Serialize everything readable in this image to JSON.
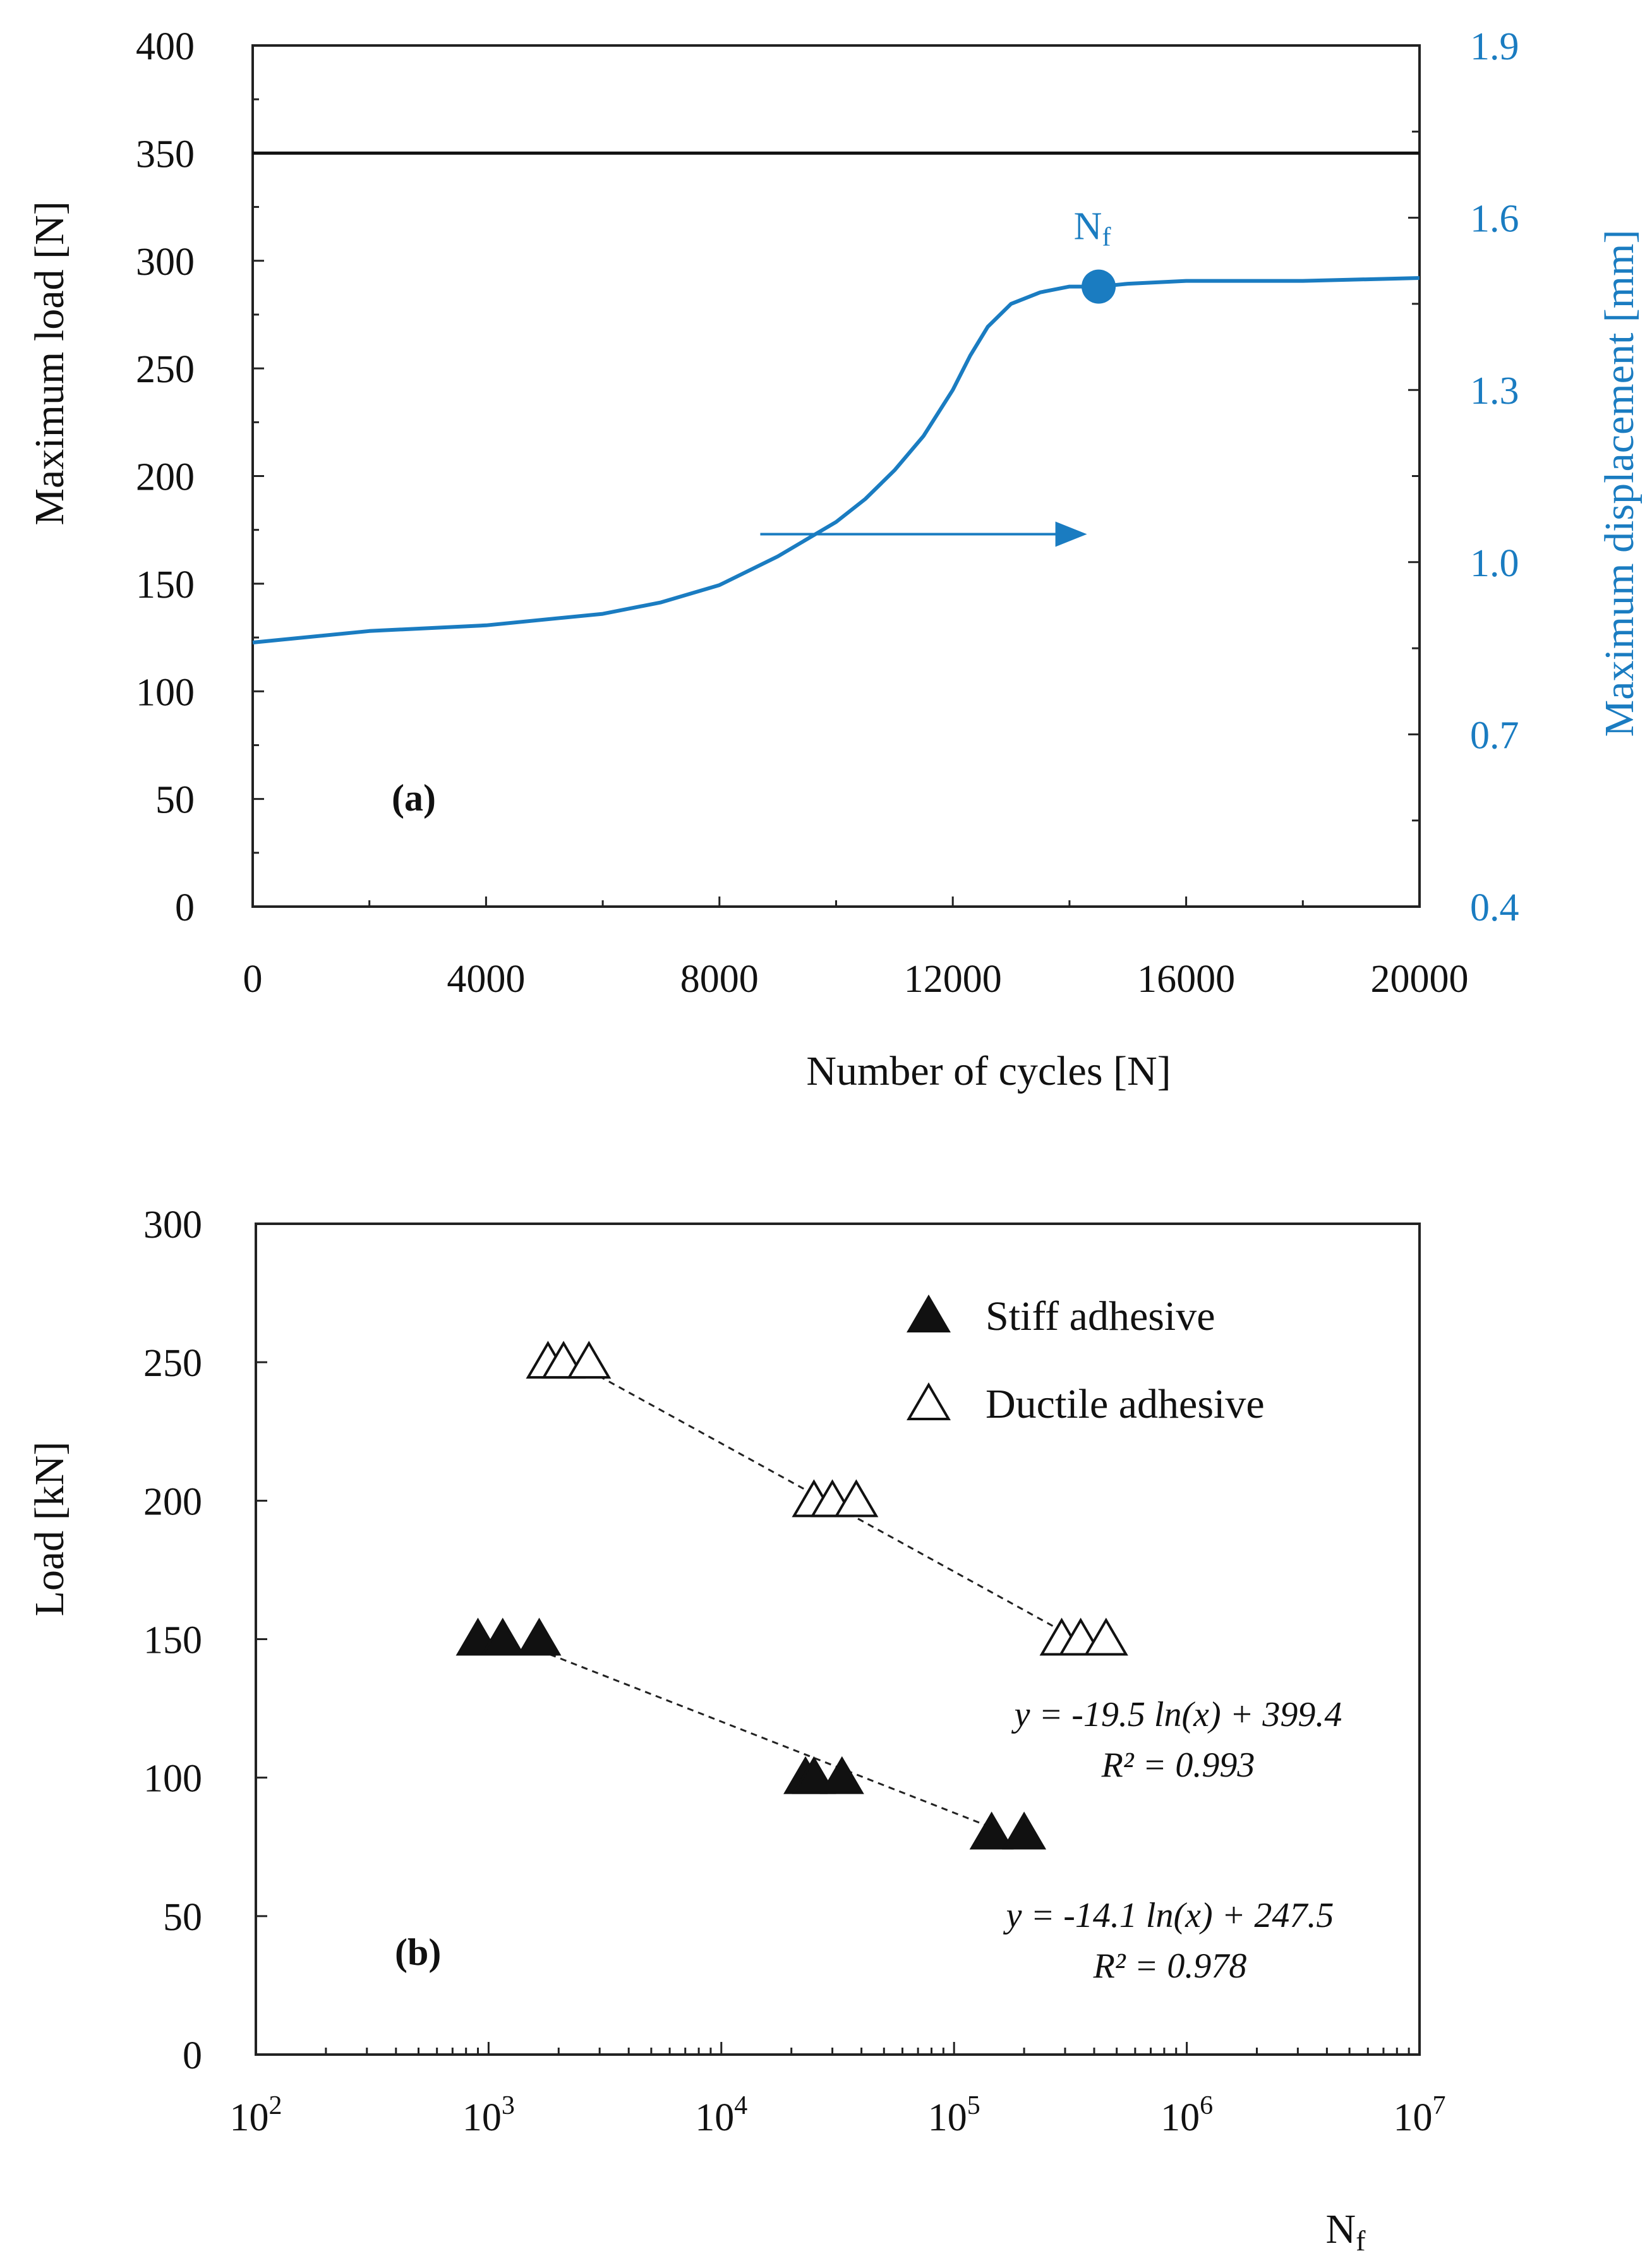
{
  "chart_data": [
    {
      "type": "line",
      "panel_label": "(a)",
      "xlabel": "Number of cycles [N]",
      "ylabel_left": "Maximum load [N]",
      "ylabel_right": "Maximum displacement [mm]",
      "xlim": [
        0,
        20000
      ],
      "ylim_left": [
        0,
        400
      ],
      "ylim_right": [
        0.4,
        1.9
      ],
      "x_ticks": [
        0,
        4000,
        8000,
        12000,
        16000,
        20000
      ],
      "x_tick_labels": [
        "0",
        "4000",
        "8000",
        "12000",
        "16000",
        "20000"
      ],
      "y_left_ticks": [
        0,
        50,
        100,
        150,
        200,
        250,
        300,
        350,
        400
      ],
      "y_left_tick_labels": [
        "0",
        "50",
        "100",
        "150",
        "200",
        "250",
        "300",
        "350",
        "400"
      ],
      "y_right_ticks": [
        0.4,
        0.7,
        1.0,
        1.3,
        1.6,
        1.9
      ],
      "y_right_tick_labels": [
        "0.4",
        "0.7",
        "1.0",
        "1.3",
        "1.6",
        "1.9"
      ],
      "series": [
        {
          "name": "Maximum load",
          "axis": "left",
          "color": "#111111",
          "x": [
            0,
            20000
          ],
          "y": [
            350,
            350
          ]
        },
        {
          "name": "Maximum displacement",
          "axis": "right",
          "color": "#1a7cc1",
          "x": [
            0,
            2000,
            4000,
            6000,
            7000,
            8000,
            9000,
            10000,
            10500,
            11000,
            11500,
            12000,
            12300,
            12600,
            13000,
            13500,
            14000,
            14500,
            15000,
            16000,
            18000,
            20000
          ],
          "y": [
            0.86,
            0.88,
            0.89,
            0.91,
            0.93,
            0.96,
            1.01,
            1.07,
            1.11,
            1.16,
            1.22,
            1.3,
            1.36,
            1.41,
            1.45,
            1.47,
            1.48,
            1.48,
            1.485,
            1.49,
            1.49,
            1.495
          ]
        }
      ],
      "marker": {
        "label": "Nf",
        "x": 14500,
        "y": 1.48,
        "axis": "right",
        "color": "#1a7cc1"
      },
      "arrow": {
        "x_start": 8700,
        "x_end": 14300,
        "y": 173,
        "axis": "left",
        "direction": "right",
        "color": "#1a7cc1"
      }
    },
    {
      "type": "scatter",
      "panel_label": "(b)",
      "xlabel": "Nf",
      "ylabel": "Load [kN]",
      "xscale": "log",
      "xlim": [
        100,
        10000000
      ],
      "ylim": [
        0,
        300
      ],
      "x_tick_exponents": [
        "2",
        "3",
        "4",
        "5",
        "6",
        "7"
      ],
      "x_tick_base": "10",
      "y_ticks": [
        0,
        50,
        100,
        150,
        200,
        250,
        300
      ],
      "y_tick_labels": [
        "0",
        "50",
        "100",
        "150",
        "200",
        "250",
        "300"
      ],
      "legend_position": "top-right",
      "series": [
        {
          "name": "Stiff adhesive",
          "marker": "filled-triangle",
          "x": [
            900,
            1150,
            1650,
            23000,
            25000,
            33000,
            145000,
            200000
          ],
          "y": [
            150,
            150,
            150,
            100,
            100,
            100,
            80,
            80
          ]
        },
        {
          "name": "Ductile adhesive",
          "marker": "open-triangle",
          "x": [
            1800,
            2100,
            2700,
            25000,
            30000,
            38000,
            290000,
            350000,
            450000
          ],
          "y": [
            250,
            250,
            250,
            200,
            200,
            200,
            150,
            150,
            150
          ]
        }
      ],
      "fits": [
        {
          "series": "Ductile adhesive",
          "equation": "y = -19.5 ln(x) + 399.4",
          "r2": "R² = 0.993",
          "x_range": [
            2700,
            290000
          ],
          "y_range": [
            247,
            153
          ]
        },
        {
          "series": "Stiff adhesive",
          "equation": "y = -14.1 ln(x) + 247.5",
          "r2": "R² = 0.978",
          "x_range": [
            1650,
            145000
          ],
          "y_range": [
            146,
            82
          ]
        }
      ]
    }
  ]
}
